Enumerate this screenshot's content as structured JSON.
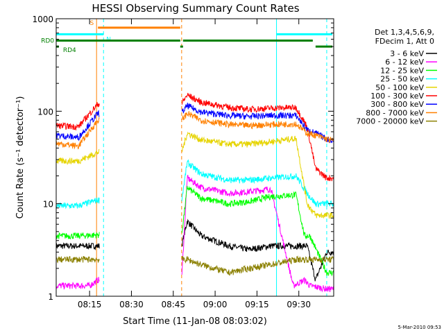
{
  "chart_data": {
    "type": "line",
    "title": "HESSI Observing Summary Count Rates",
    "xlabel": "Start Time (11-Jan-08 08:03:02)",
    "ylabel": "Count Rate (s⁻¹ detector⁻¹)",
    "y_scale": "log",
    "xlim": [
      "08:03:02",
      "09:42:30"
    ],
    "ylim": [
      1,
      1000
    ],
    "x_ticks": [
      "08:15",
      "08:30",
      "08:45",
      "09:00",
      "09:15",
      "09:30"
    ],
    "y_ticks": [
      "1",
      "10",
      "100",
      "1000"
    ],
    "grid": false,
    "legend_position": "right",
    "legend_header": [
      "Det 1,3,4,5,6,9,",
      "FDecim 1, Att 0"
    ],
    "series": [
      {
        "name": "3 - 6 keV",
        "color": "#000000",
        "x": [
          "08:03:02",
          "08:11:00",
          "08:18:00",
          "08:48:00",
          "08:50:00",
          "08:55:00",
          "09:05:00",
          "09:12:00",
          "09:20:00",
          "09:29:00",
          "09:33:00",
          "09:36:00",
          "09:40:00",
          "09:42:30"
        ],
        "y": [
          3.5,
          3.5,
          3.5,
          3.5,
          6.5,
          4.5,
          3.5,
          3.2,
          3.5,
          3.5,
          3.5,
          1.5,
          3.0,
          3.0
        ]
      },
      {
        "name": "6 - 12 keV",
        "color": "#ff00ff",
        "x": [
          "08:03:02",
          "08:15:00",
          "08:18:00",
          "08:48:00",
          "08:50:00",
          "08:55:00",
          "09:05:00",
          "09:12:00",
          "09:20:00",
          "09:28:00",
          "09:32:00",
          "09:34:00",
          "09:40:00",
          "09:42:30"
        ],
        "y": [
          1.3,
          1.3,
          1.5,
          1.5,
          19,
          15,
          13,
          13.5,
          14.5,
          1.3,
          1.5,
          1.3,
          1.2,
          1.2
        ]
      },
      {
        "name": "12 - 25 keV",
        "color": "#00ff00",
        "x": [
          "08:03:02",
          "08:11:00",
          "08:18:00",
          "08:48:00",
          "08:50:00",
          "08:55:00",
          "09:05:00",
          "09:12:00",
          "09:20:00",
          "09:29:00",
          "09:32:00",
          "09:34:00",
          "09:40:00",
          "09:42:30"
        ],
        "y": [
          4.5,
          4.5,
          4.6,
          4.6,
          15,
          11.5,
          10,
          10.5,
          12,
          12.5,
          4.5,
          4.5,
          1.8,
          1.8
        ]
      },
      {
        "name": "25 - 50 keV",
        "color": "#00ffff",
        "x": [
          "08:03:02",
          "08:11:00",
          "08:18:00",
          "08:48:00",
          "08:50:00",
          "08:55:00",
          "09:05:00",
          "09:12:00",
          "09:20:00",
          "09:29:00",
          "09:33:00",
          "09:36:00",
          "09:40:00",
          "09:42:30"
        ],
        "y": [
          9.5,
          9.5,
          11,
          11,
          28,
          21,
          18,
          18,
          19,
          20,
          13,
          10,
          10,
          10
        ]
      },
      {
        "name": "50 - 100 keV",
        "color": "#e6d400",
        "x": [
          "08:03:02",
          "08:11:00",
          "08:18:00",
          "08:48:00",
          "08:50:00",
          "08:55:00",
          "09:05:00",
          "09:12:00",
          "09:20:00",
          "09:29:00",
          "09:33:00",
          "09:36:00",
          "09:40:00",
          "09:42:30"
        ],
        "y": [
          29,
          29,
          36,
          36,
          58,
          49,
          44,
          44,
          47,
          51,
          10,
          7.5,
          7.5,
          7.5
        ]
      },
      {
        "name": "100 - 300 keV",
        "color": "#ff0000",
        "x": [
          "08:03:02",
          "08:11:00",
          "08:18:00",
          "08:48:00",
          "08:50:00",
          "08:55:00",
          "09:05:00",
          "09:12:00",
          "09:20:00",
          "09:29:00",
          "09:33:00",
          "09:36:00",
          "09:40:00",
          "09:42:30"
        ],
        "y": [
          70,
          68,
          120,
          120,
          150,
          125,
          110,
          105,
          108,
          110,
          68,
          24,
          19,
          19
        ]
      },
      {
        "name": "300 - 800 keV",
        "color": "#0000ff",
        "x": [
          "08:03:02",
          "08:11:00",
          "08:18:00",
          "08:48:00",
          "08:50:00",
          "08:55:00",
          "09:05:00",
          "09:12:00",
          "09:20:00",
          "09:29:00",
          "09:33:00",
          "09:36:00",
          "09:40:00",
          "09:42:30"
        ],
        "y": [
          55,
          52,
          95,
          95,
          115,
          98,
          90,
          88,
          90,
          90,
          63,
          58,
          50,
          48
        ]
      },
      {
        "name": "800 - 7000 keV",
        "color": "#ff8000",
        "x": [
          "08:03:02",
          "08:11:00",
          "08:18:00",
          "08:48:00",
          "08:50:00",
          "08:55:00",
          "09:05:00",
          "09:12:00",
          "09:20:00",
          "09:29:00",
          "09:33:00",
          "09:36:00",
          "09:40:00",
          "09:42:30"
        ],
        "y": [
          45,
          42,
          80,
          80,
          95,
          80,
          72,
          70,
          72,
          73,
          58,
          55,
          50,
          48
        ]
      },
      {
        "name": "7000 - 20000 keV",
        "color": "#8b8000",
        "x": [
          "08:03:02",
          "08:11:00",
          "08:18:00",
          "08:48:00",
          "08:50:00",
          "08:55:00",
          "09:05:00",
          "09:12:00",
          "09:20:00",
          "09:29:00",
          "09:33:00",
          "09:36:00",
          "09:40:00",
          "09:42:30"
        ],
        "y": [
          2.5,
          2.5,
          2.5,
          2.5,
          2.5,
          2.2,
          1.8,
          2.0,
          2.2,
          2.5,
          2.5,
          2.5,
          2.5,
          2.5
        ]
      }
    ],
    "flag_bars": [
      {
        "label": "S",
        "color": "#ff8000",
        "value": 800,
        "start": "08:18:00",
        "end": "08:47:30"
      },
      {
        "label": "N",
        "color": "#00ffff",
        "value": 680,
        "start": "08:03:02",
        "end": "08:20:00"
      },
      {
        "label": "",
        "color": "#00ffff",
        "value": 680,
        "start": "09:22:00",
        "end": "09:42:00"
      },
      {
        "label": "RD0",
        "color": "#008000",
        "value": 580,
        "start": "08:03:02",
        "end": "08:47:30"
      },
      {
        "label": "",
        "color": "#008000",
        "value": 580,
        "start": "08:48:30",
        "end": "09:35:00"
      },
      {
        "label": "",
        "color": "#008000",
        "value": 500,
        "start": "09:36:00",
        "end": "09:42:00"
      },
      {
        "label": "RD4",
        "color": "#008000",
        "value": 500,
        "start": "08:03:02",
        "end": "08:04:00"
      },
      {
        "label": "",
        "color": "#008000",
        "value": 500,
        "start": "08:47:30",
        "end": "08:48:30"
      }
    ],
    "markers": [
      {
        "time": "08:03:02",
        "color": "#00ffff",
        "style": "solid"
      },
      {
        "time": "08:17:30",
        "color": "#ff8000",
        "style": "solid"
      },
      {
        "time": "08:20:00",
        "color": "#00ffff",
        "style": "dashed"
      },
      {
        "time": "08:48:00",
        "color": "#ff8000",
        "style": "dashed"
      },
      {
        "time": "09:22:00",
        "color": "#00ffff",
        "style": "solid"
      },
      {
        "time": "09:40:00",
        "color": "#00ffff",
        "style": "dashed"
      }
    ]
  },
  "footer": {
    "timestamp": "5-Mar-2010 09:53"
  }
}
